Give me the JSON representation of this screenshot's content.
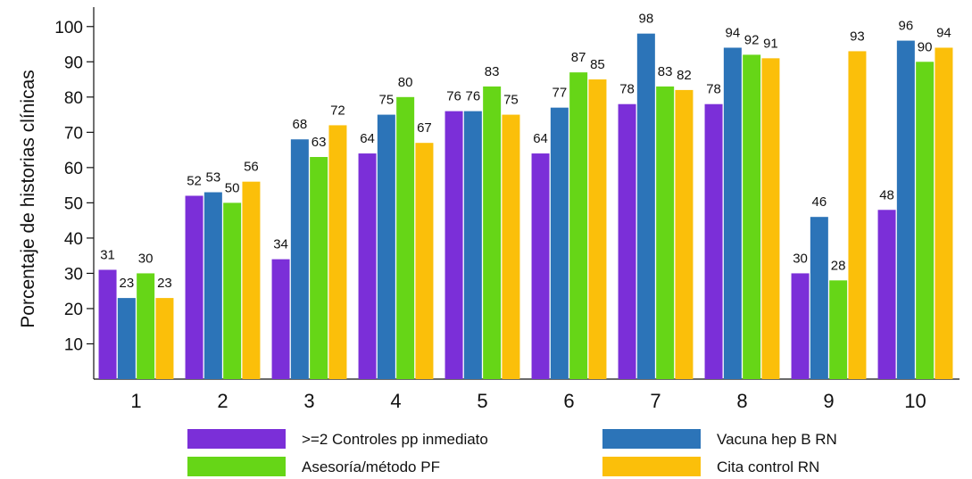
{
  "chart_data": {
    "type": "bar",
    "title": "",
    "xlabel": "",
    "ylabel": "Porcentaje de historias clínicas",
    "ylim": [
      0,
      105
    ],
    "yticks": [
      10,
      20,
      30,
      40,
      50,
      60,
      70,
      80,
      90,
      100
    ],
    "grid": false,
    "legend_position": "bottom",
    "categories": [
      "1",
      "2",
      "3",
      "4",
      "5",
      "6",
      "7",
      "8",
      "9",
      "10"
    ],
    "series": [
      {
        "name": ">=2 Controles pp inmediato",
        "color": "#7b2fd8",
        "values": [
          31,
          52,
          34,
          64,
          76,
          64,
          78,
          78,
          30,
          48
        ],
        "labels": [
          "31",
          "52",
          "34",
          "64",
          "76",
          "64",
          "78",
          "78",
          "30",
          "48"
        ]
      },
      {
        "name": "Vacuna hep B RN",
        "color": "#2c74b8",
        "values": [
          23,
          53,
          68,
          75,
          76,
          77,
          98,
          94,
          46,
          96
        ],
        "labels": [
          "23",
          "53",
          "68",
          "75",
          "76",
          "77",
          "98",
          "94",
          "46",
          "96"
        ]
      },
      {
        "name": "Asesoría/método PF",
        "color": "#66d617",
        "values": [
          30,
          50,
          63,
          80,
          83,
          87,
          83,
          92,
          28,
          90
        ],
        "labels": [
          "30",
          "50",
          "63",
          "80",
          "83",
          "87",
          "83",
          "92",
          "28",
          "90"
        ]
      },
      {
        "name": "Cita control RN",
        "color": "#fbbf0a",
        "values": [
          23,
          56,
          72,
          67,
          75,
          85,
          82,
          91,
          93,
          94
        ],
        "labels": [
          "23",
          "56",
          "72",
          "67",
          "75",
          "85",
          "82",
          "91",
          "93",
          "94"
        ]
      }
    ]
  }
}
